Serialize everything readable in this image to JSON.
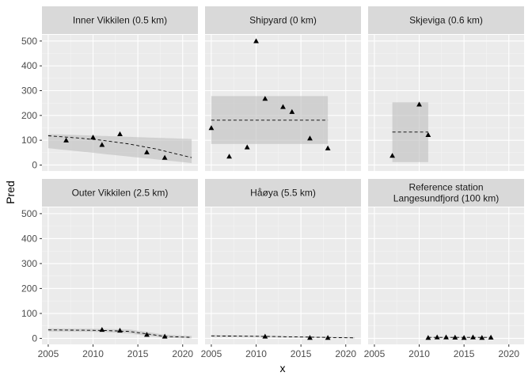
{
  "chart_data": {
    "type": "scatter",
    "xlabel": "x",
    "ylabel": "Pred",
    "xlim": [
      2004.3,
      2021.7
    ],
    "ylim": [
      -24,
      525
    ],
    "x_ticks": [
      2005,
      2010,
      2015,
      2020
    ],
    "y_ticks": [
      0,
      100,
      200,
      300,
      400,
      500
    ],
    "grid": true,
    "facet_layout": "2 rows x 3 columns, shared axes",
    "colors": {
      "panel_bg": "#EBEBEB",
      "strip_bg": "#D9D9D9",
      "grid_major": "#FFFFFF",
      "ribbon": "#BEBEBE",
      "points": "#000000",
      "fit_line": "#000000"
    },
    "panels": [
      {
        "label": "Inner Vikkilen (0.5 km)",
        "points": [
          [
            2007,
            100
          ],
          [
            2010,
            112
          ],
          [
            2011,
            82
          ],
          [
            2013,
            125
          ],
          [
            2016,
            52
          ],
          [
            2018,
            30
          ]
        ],
        "fit_x": [
          2005,
          2008,
          2011,
          2014,
          2017,
          2021
        ],
        "fit_y": [
          118,
          110,
          100,
          85,
          65,
          30
        ],
        "ribbon_x": [
          2005,
          2021
        ],
        "ribbon_lo": [
          68,
          8
        ],
        "ribbon_hi": [
          125,
          105
        ]
      },
      {
        "label": "Shipyard (0 km)",
        "points": [
          [
            2005,
            150
          ],
          [
            2007,
            35
          ],
          [
            2009,
            72
          ],
          [
            2010,
            500
          ],
          [
            2011,
            268
          ],
          [
            2013,
            235
          ],
          [
            2014,
            215
          ],
          [
            2016,
            108
          ],
          [
            2018,
            68
          ]
        ],
        "fit_x": [
          2005,
          2018
        ],
        "fit_y": [
          181,
          181
        ],
        "ribbon_x": [
          2005,
          2018
        ],
        "ribbon_lo": [
          85,
          85
        ],
        "ribbon_hi": [
          278,
          278
        ]
      },
      {
        "label": "Skjeviga (0.6 km)",
        "points": [
          [
            2007,
            38
          ],
          [
            2010,
            245
          ],
          [
            2011,
            122
          ]
        ],
        "fit_x": [
          2007,
          2011
        ],
        "fit_y": [
          133,
          133
        ],
        "ribbon_x": [
          2007,
          2011
        ],
        "ribbon_lo": [
          12,
          12
        ],
        "ribbon_hi": [
          253,
          253
        ]
      },
      {
        "label": "Outer Vikkilen (2.5 km)",
        "points": [
          [
            2011,
            35
          ],
          [
            2013,
            32
          ],
          [
            2016,
            15
          ],
          [
            2018,
            8
          ]
        ],
        "fit_x": [
          2005,
          2011,
          2014,
          2016,
          2018,
          2021
        ],
        "fit_y": [
          34,
          32,
          28,
          18,
          8,
          4
        ],
        "ribbon_x": [
          2005,
          2011,
          2014,
          2016,
          2018,
          2021
        ],
        "ribbon_lo": [
          28,
          26,
          20,
          10,
          2,
          0
        ],
        "ribbon_hi": [
          40,
          38,
          36,
          26,
          15,
          10
        ]
      },
      {
        "label": "Håøya (5.5 km)",
        "points": [
          [
            2011,
            8
          ],
          [
            2016,
            3
          ],
          [
            2018,
            3
          ]
        ],
        "fit_x": [
          2005,
          2011,
          2016,
          2021
        ],
        "fit_y": [
          10,
          8,
          5,
          2
        ],
        "ribbon_x": [
          2005,
          2011,
          2016,
          2021
        ],
        "ribbon_lo": [
          6,
          5,
          2,
          0
        ],
        "ribbon_hi": [
          14,
          11,
          8,
          5
        ]
      },
      {
        "label": "Reference station\nLangesundfjord (100 km)",
        "points": [
          [
            2011,
            3
          ],
          [
            2012,
            5
          ],
          [
            2013,
            5
          ],
          [
            2014,
            4
          ],
          [
            2015,
            3
          ],
          [
            2016,
            5
          ],
          [
            2017,
            3
          ],
          [
            2018,
            4
          ]
        ],
        "fit_x": [
          2011,
          2018
        ],
        "fit_y": [
          4,
          4
        ],
        "ribbon_x": [
          2011,
          2018
        ],
        "ribbon_lo": [
          2,
          2
        ],
        "ribbon_hi": [
          6,
          6
        ]
      }
    ]
  }
}
